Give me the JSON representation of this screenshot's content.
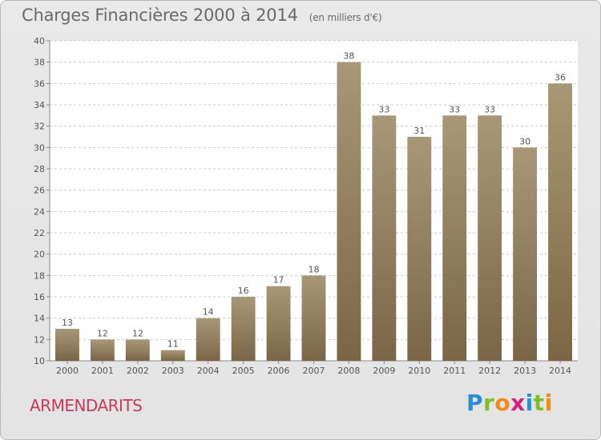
{
  "title": "Charges Financières 2000 à 2014",
  "subtitle": "(en milliers d'€)",
  "commune": "ARMENDARITS",
  "logo": {
    "text": "Proxiti",
    "letter_colors": [
      "#2a8fd6",
      "#7fbf2a",
      "#f08a1c",
      "#d4237a",
      "#2a8fd6",
      "#7fbf2a",
      "#f08a1c"
    ]
  },
  "colors": {
    "bar_top": "#a89878",
    "bar_bottom": "#7a6646",
    "plot_bg": "#ffffff",
    "grid": "#c8c8c8",
    "text": "#555555"
  },
  "chart_data": {
    "type": "bar",
    "categories": [
      "2000",
      "2001",
      "2002",
      "2003",
      "2004",
      "2005",
      "2006",
      "2007",
      "2008",
      "2009",
      "2010",
      "2011",
      "2012",
      "2013",
      "2014"
    ],
    "values": [
      13,
      12,
      12,
      11,
      14,
      16,
      17,
      18,
      38,
      33,
      31,
      33,
      33,
      30,
      36
    ],
    "ylim": [
      10,
      40
    ],
    "yticks": [
      10,
      12,
      14,
      16,
      18,
      20,
      22,
      24,
      26,
      28,
      30,
      32,
      34,
      36,
      38,
      40
    ],
    "grid": true,
    "data_labels": true
  }
}
